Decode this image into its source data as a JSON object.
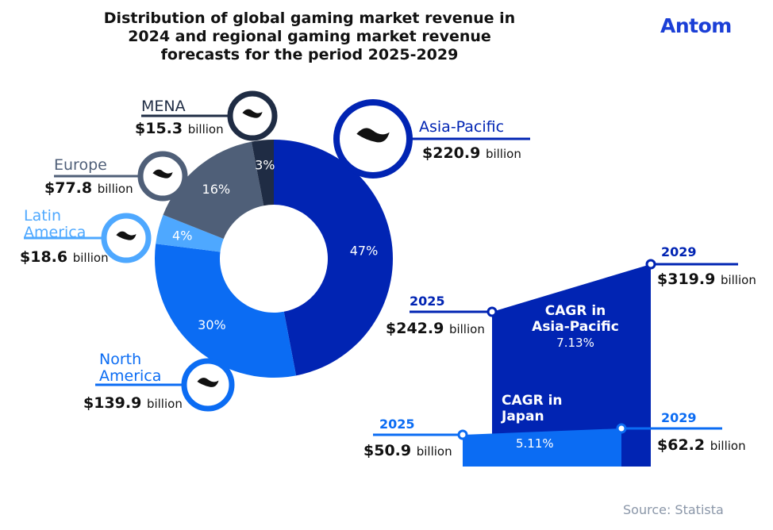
{
  "title": "Distribution of global gaming market revenue in 2024 and regional gaming market revenue forecasts for the period 2025-2029",
  "logo": "Antom",
  "source": "Source: Statista",
  "unit": "billion",
  "chart_data": [
    {
      "type": "pie",
      "title": "Global gaming market revenue 2024",
      "slices": [
        {
          "name": "Asia-Pacific",
          "value": 220.9,
          "value_label": "$220.9",
          "percent": 47,
          "percent_label": "47%",
          "color": "#0124b3"
        },
        {
          "name": "North America",
          "value": 139.9,
          "value_label": "$139.9",
          "percent": 30,
          "percent_label": "30%",
          "color": "#0b6cf3"
        },
        {
          "name": "Latin America",
          "value": 18.6,
          "value_label": "$18.6",
          "percent": 4,
          "percent_label": "4%",
          "color": "#4ea8ff"
        },
        {
          "name": "Europe",
          "value": 77.8,
          "value_label": "$77.8",
          "percent": 16,
          "percent_label": "16%",
          "color": "#4f5f78"
        },
        {
          "name": "MENA",
          "value": 15.3,
          "value_label": "$15.3",
          "percent": 3,
          "percent_label": "3%",
          "color": "#1f2c44"
        }
      ]
    },
    {
      "type": "area",
      "title": "Regional gaming market revenue forecasts 2025-2029",
      "series": [
        {
          "name": "Asia-Pacific",
          "cagr_label": "CAGR in",
          "cagr_region": "Asia-Pacific",
          "cagr": "7.13%",
          "start_year": "2025",
          "start_value": 242.9,
          "start_label": "$242.9",
          "end_year": "2029",
          "end_value": 319.9,
          "end_label": "$319.9",
          "color": "#0124b3"
        },
        {
          "name": "Japan",
          "cagr_label": "CAGR in",
          "cagr_region": "Japan",
          "cagr": "5.11%",
          "start_year": "2025",
          "start_value": 50.9,
          "start_label": "$50.9",
          "end_year": "2029",
          "end_value": 62.2,
          "end_label": "$62.2",
          "color": "#0b6cf3"
        }
      ]
    }
  ]
}
